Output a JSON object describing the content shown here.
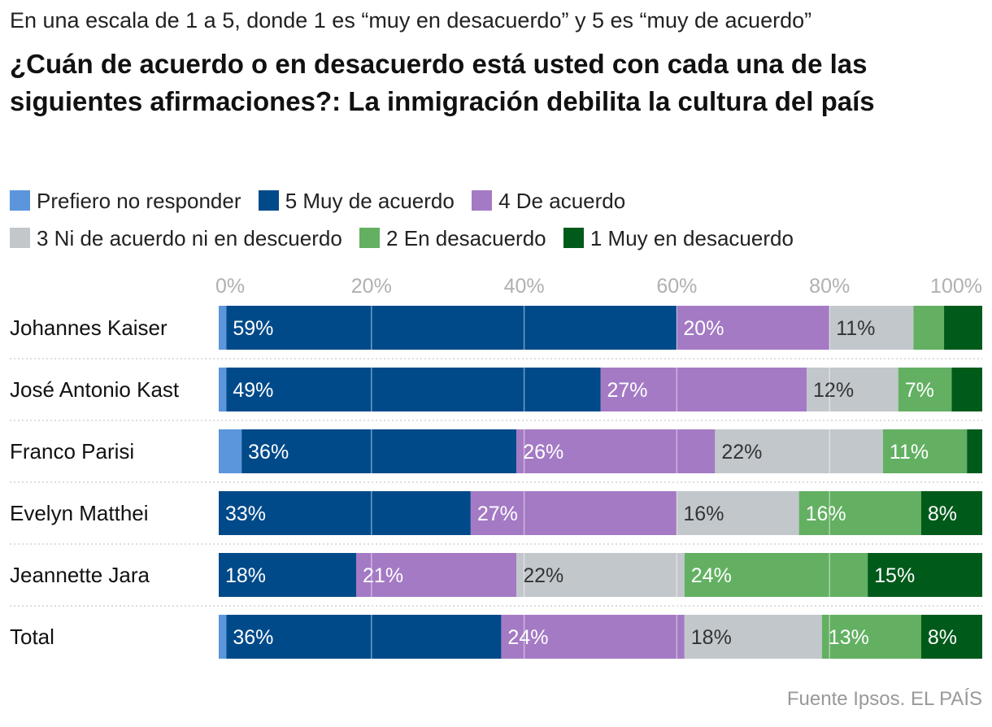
{
  "header": {
    "subtitle": "En una escala de 1 a 5, donde 1 es “muy en desacuerdo” y 5 es “muy de acuerdo”",
    "title": "¿Cuán de acuerdo o en desacuerdo está usted con cada una de las siguientes afirmaciones?: La inmigración debilita la cultura del país"
  },
  "legend": [
    {
      "label": "Prefiero no responder",
      "color": "#5b96dc"
    },
    {
      "label": "5 Muy de acuerdo",
      "color": "#004a8a"
    },
    {
      "label": "4 De acuerdo",
      "color": "#a47ac4"
    },
    {
      "label": "3 Ni de acuerdo ni en descuerdo",
      "color": "#c2c7cc"
    },
    {
      "label": "2 En desacuerdo",
      "color": "#63b062"
    },
    {
      "label": "1 Muy en desacuerdo",
      "color": "#005a1a"
    }
  ],
  "source": "Fuente Ipsos. EL PAÍS",
  "chart_data": {
    "type": "bar",
    "orientation": "horizontal",
    "stacked": true,
    "xlim": [
      0,
      100
    ],
    "x_ticks": [
      "0%",
      "20%",
      "40%",
      "60%",
      "80%",
      "100%"
    ],
    "categories": [
      "Johannes Kaiser",
      "José Antonio Kast",
      "Franco Parisi",
      "Evelyn Matthei",
      "Jeannette Jara",
      "Total"
    ],
    "series": [
      {
        "name": "Prefiero no responder",
        "color": "#5b96dc",
        "text_color": "#ffffff",
        "values": [
          1,
          1,
          3,
          0,
          0,
          1
        ],
        "labels": [
          "",
          "",
          "",
          "",
          "",
          ""
        ]
      },
      {
        "name": "5 Muy de acuerdo",
        "color": "#004a8a",
        "text_color": "#ffffff",
        "values": [
          59,
          49,
          36,
          33,
          18,
          36
        ],
        "labels": [
          "59%",
          "49%",
          "36%",
          "33%",
          "18%",
          "36%"
        ]
      },
      {
        "name": "4 De acuerdo",
        "color": "#a47ac4",
        "text_color": "#ffffff",
        "values": [
          20,
          27,
          26,
          27,
          21,
          24
        ],
        "labels": [
          "20%",
          "27%",
          "26%",
          "27%",
          "21%",
          "24%"
        ]
      },
      {
        "name": "3 Ni de acuerdo ni en descuerdo",
        "color": "#c2c7cc",
        "text_color": "#333333",
        "values": [
          11,
          12,
          22,
          16,
          22,
          18
        ],
        "labels": [
          "11%",
          "12%",
          "22%",
          "16%",
          "22%",
          "18%"
        ]
      },
      {
        "name": "2 En desacuerdo",
        "color": "#63b062",
        "text_color": "#ffffff",
        "values": [
          4,
          7,
          11,
          16,
          24,
          13
        ],
        "labels": [
          "",
          "7%",
          "11%",
          "16%",
          "24%",
          "13%"
        ]
      },
      {
        "name": "1 Muy en desacuerdo",
        "color": "#005a1a",
        "text_color": "#ffffff",
        "values": [
          5,
          4,
          2,
          8,
          15,
          8
        ],
        "labels": [
          "",
          "",
          "",
          "8%",
          "15%",
          "8%"
        ]
      }
    ]
  }
}
